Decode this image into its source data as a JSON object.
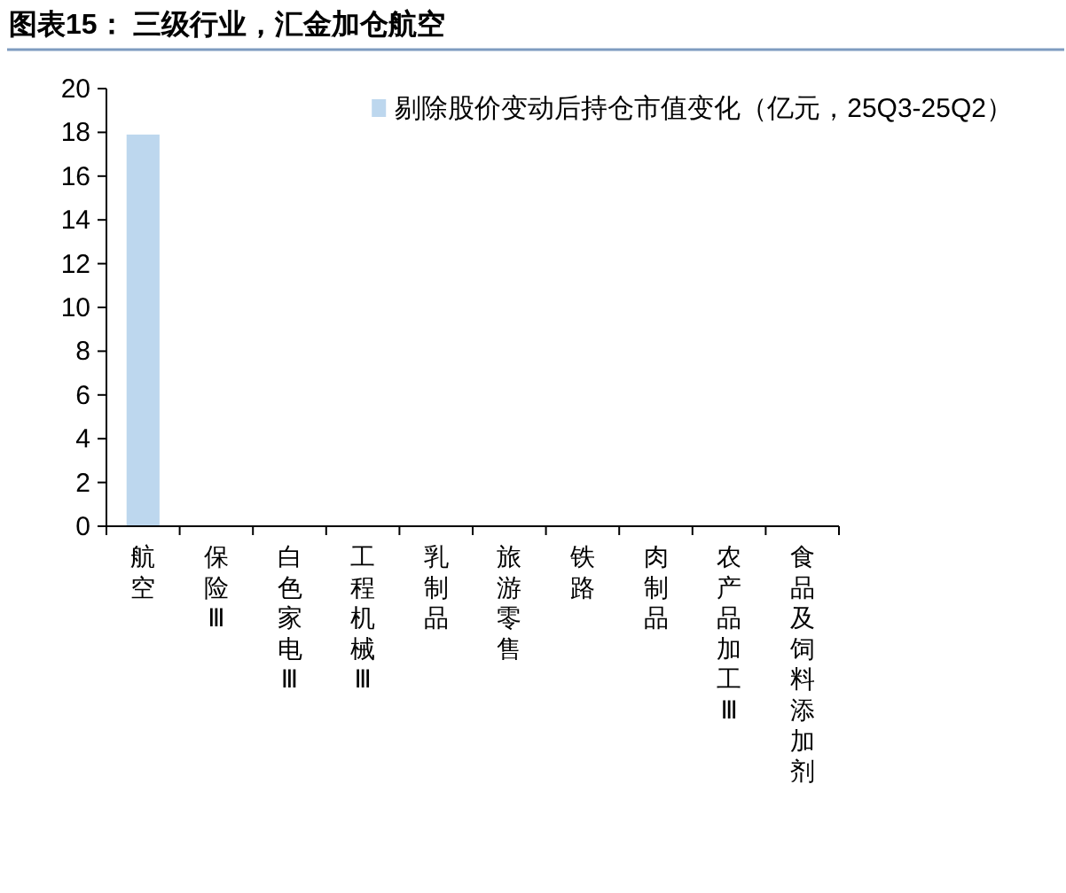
{
  "chart_data": {
    "type": "bar",
    "title": "图表15： 三级行业，汇金加仓航空",
    "categories": [
      "航空",
      "保险Ⅲ",
      "白色家电Ⅲ",
      "工程机械Ⅲ",
      "乳制品",
      "旅游零售",
      "铁路",
      "肉制品",
      "农产品加工Ⅲ",
      "食品及饲料添加剂"
    ],
    "series": [
      {
        "name": "剔除股价变动后持仓市值变化（亿元，25Q3-25Q2）",
        "color": "#bdd7ee",
        "values": [
          17.9,
          0,
          0,
          0,
          0,
          0,
          0,
          0,
          0,
          0
        ]
      }
    ],
    "ylim": [
      0,
      20
    ],
    "yticks": [
      0,
      2,
      4,
      6,
      8,
      10,
      12,
      14,
      16,
      18,
      20
    ],
    "legend": "top right"
  }
}
